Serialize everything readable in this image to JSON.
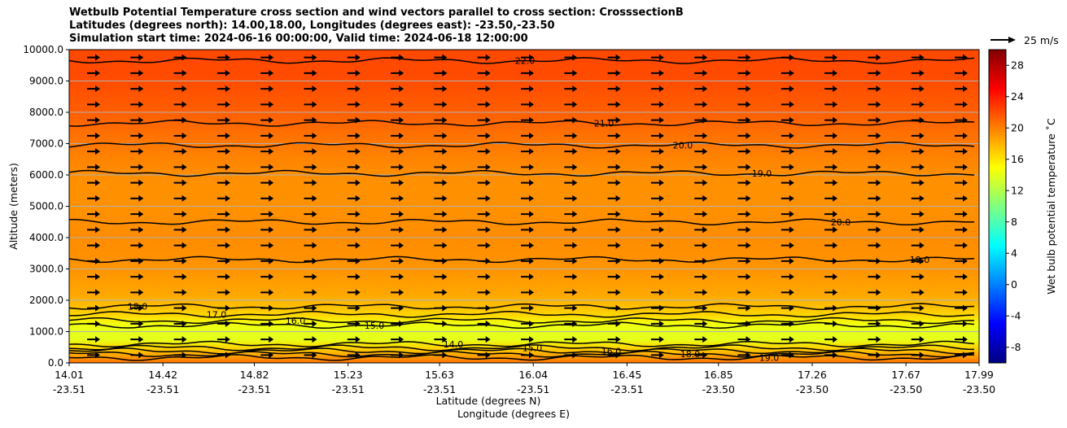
{
  "chart_data": {
    "type": "heatmap",
    "title_lines": [
      "Wetbulb Potential Temperature cross section and wind vectors parallel to cross section: CrosssectionB",
      "Latitudes (degrees north): 14.00,18.00, Longitudes (degrees east): -23.50,-23.50",
      "Simulation start time: 2024-06-16 00:00:00, Valid time: 2024-06-18 12:00:00"
    ],
    "xlabel": "Latitude (degrees N)",
    "xlabel2": "Longitude (degrees E)",
    "ylabel": "Altitude (meters)",
    "colorbar_label": "Wet bulb potential temperature ˚C",
    "colorbar_range": [
      -10,
      30
    ],
    "colorbar_ticks": [
      "-8",
      "-4",
      "0",
      "4",
      "8",
      "12",
      "16",
      "20",
      "24",
      "28"
    ],
    "colorbar_tick_values": [
      -8,
      -4,
      0,
      4,
      8,
      12,
      16,
      20,
      24,
      28
    ],
    "quiver_key_label": "25 m/s",
    "ylim": [
      0,
      10000
    ],
    "y_ticks": [
      "0.0",
      "1000.0",
      "2000.0",
      "3000.0",
      "4000.0",
      "5000.0",
      "6000.0",
      "7000.0",
      "8000.0",
      "9000.0",
      "10000.0"
    ],
    "y_tick_values": [
      0,
      1000,
      2000,
      3000,
      4000,
      5000,
      6000,
      7000,
      8000,
      9000,
      10000
    ],
    "xlim": [
      14.01,
      17.99
    ],
    "x_tick_values": [
      14.01,
      14.42,
      14.82,
      15.23,
      15.63,
      16.04,
      16.45,
      16.85,
      17.26,
      17.67,
      17.99
    ],
    "x_ticks_lat": [
      "14.01",
      "14.42",
      "14.82",
      "15.23",
      "15.63",
      "16.04",
      "16.45",
      "16.85",
      "17.26",
      "17.67",
      "17.99"
    ],
    "x_ticks_lon": [
      "-23.51",
      "-23.51",
      "-23.51",
      "-23.51",
      "-23.51",
      "-23.51",
      "-23.51",
      "-23.50",
      "-23.50",
      "-23.50",
      "-23.50"
    ],
    "wbpt_profile": [
      {
        "alt": 0,
        "t": 20.5
      },
      {
        "alt": 250,
        "t": 18.5
      },
      {
        "alt": 500,
        "t": 16.5
      },
      {
        "alt": 750,
        "t": 14.0
      },
      {
        "alt": 1000,
        "t": 14.0
      },
      {
        "alt": 1250,
        "t": 14.5
      },
      {
        "alt": 1500,
        "t": 16.5
      },
      {
        "alt": 1800,
        "t": 17.5
      },
      {
        "alt": 2200,
        "t": 18.5
      },
      {
        "alt": 3000,
        "t": 19.2
      },
      {
        "alt": 4000,
        "t": 19.5
      },
      {
        "alt": 5000,
        "t": 19.3
      },
      {
        "alt": 6000,
        "t": 19.4
      },
      {
        "alt": 7000,
        "t": 20.3
      },
      {
        "alt": 8000,
        "t": 21.3
      },
      {
        "alt": 9000,
        "t": 22.0
      },
      {
        "alt": 10000,
        "t": 22.2
      }
    ],
    "contours": [
      {
        "label": "22.0",
        "alt": 9650
      },
      {
        "label": "21.0",
        "alt": 7650
      },
      {
        "label": "20.0",
        "alt": 6950
      },
      {
        "label": "19.0",
        "alt": 6050
      },
      {
        "label": "20.0",
        "alt": 4500
      },
      {
        "label": "19.0",
        "alt": 3300
      },
      {
        "label": "18.0",
        "alt": 1800
      },
      {
        "label": "17.0",
        "alt": 1550
      },
      {
        "label": "16.0",
        "alt": 1350
      },
      {
        "label": "15.0",
        "alt": 1200
      },
      {
        "label": "14.0",
        "alt": 600
      },
      {
        "label": "15.0",
        "alt": 480
      },
      {
        "label": "16.0",
        "alt": 380
      },
      {
        "label": "18.0",
        "alt": 280
      },
      {
        "label": "19.0",
        "alt": 170
      }
    ],
    "wind_vectors_direction": "positive along section (toward increasing latitude) at all levels"
  }
}
